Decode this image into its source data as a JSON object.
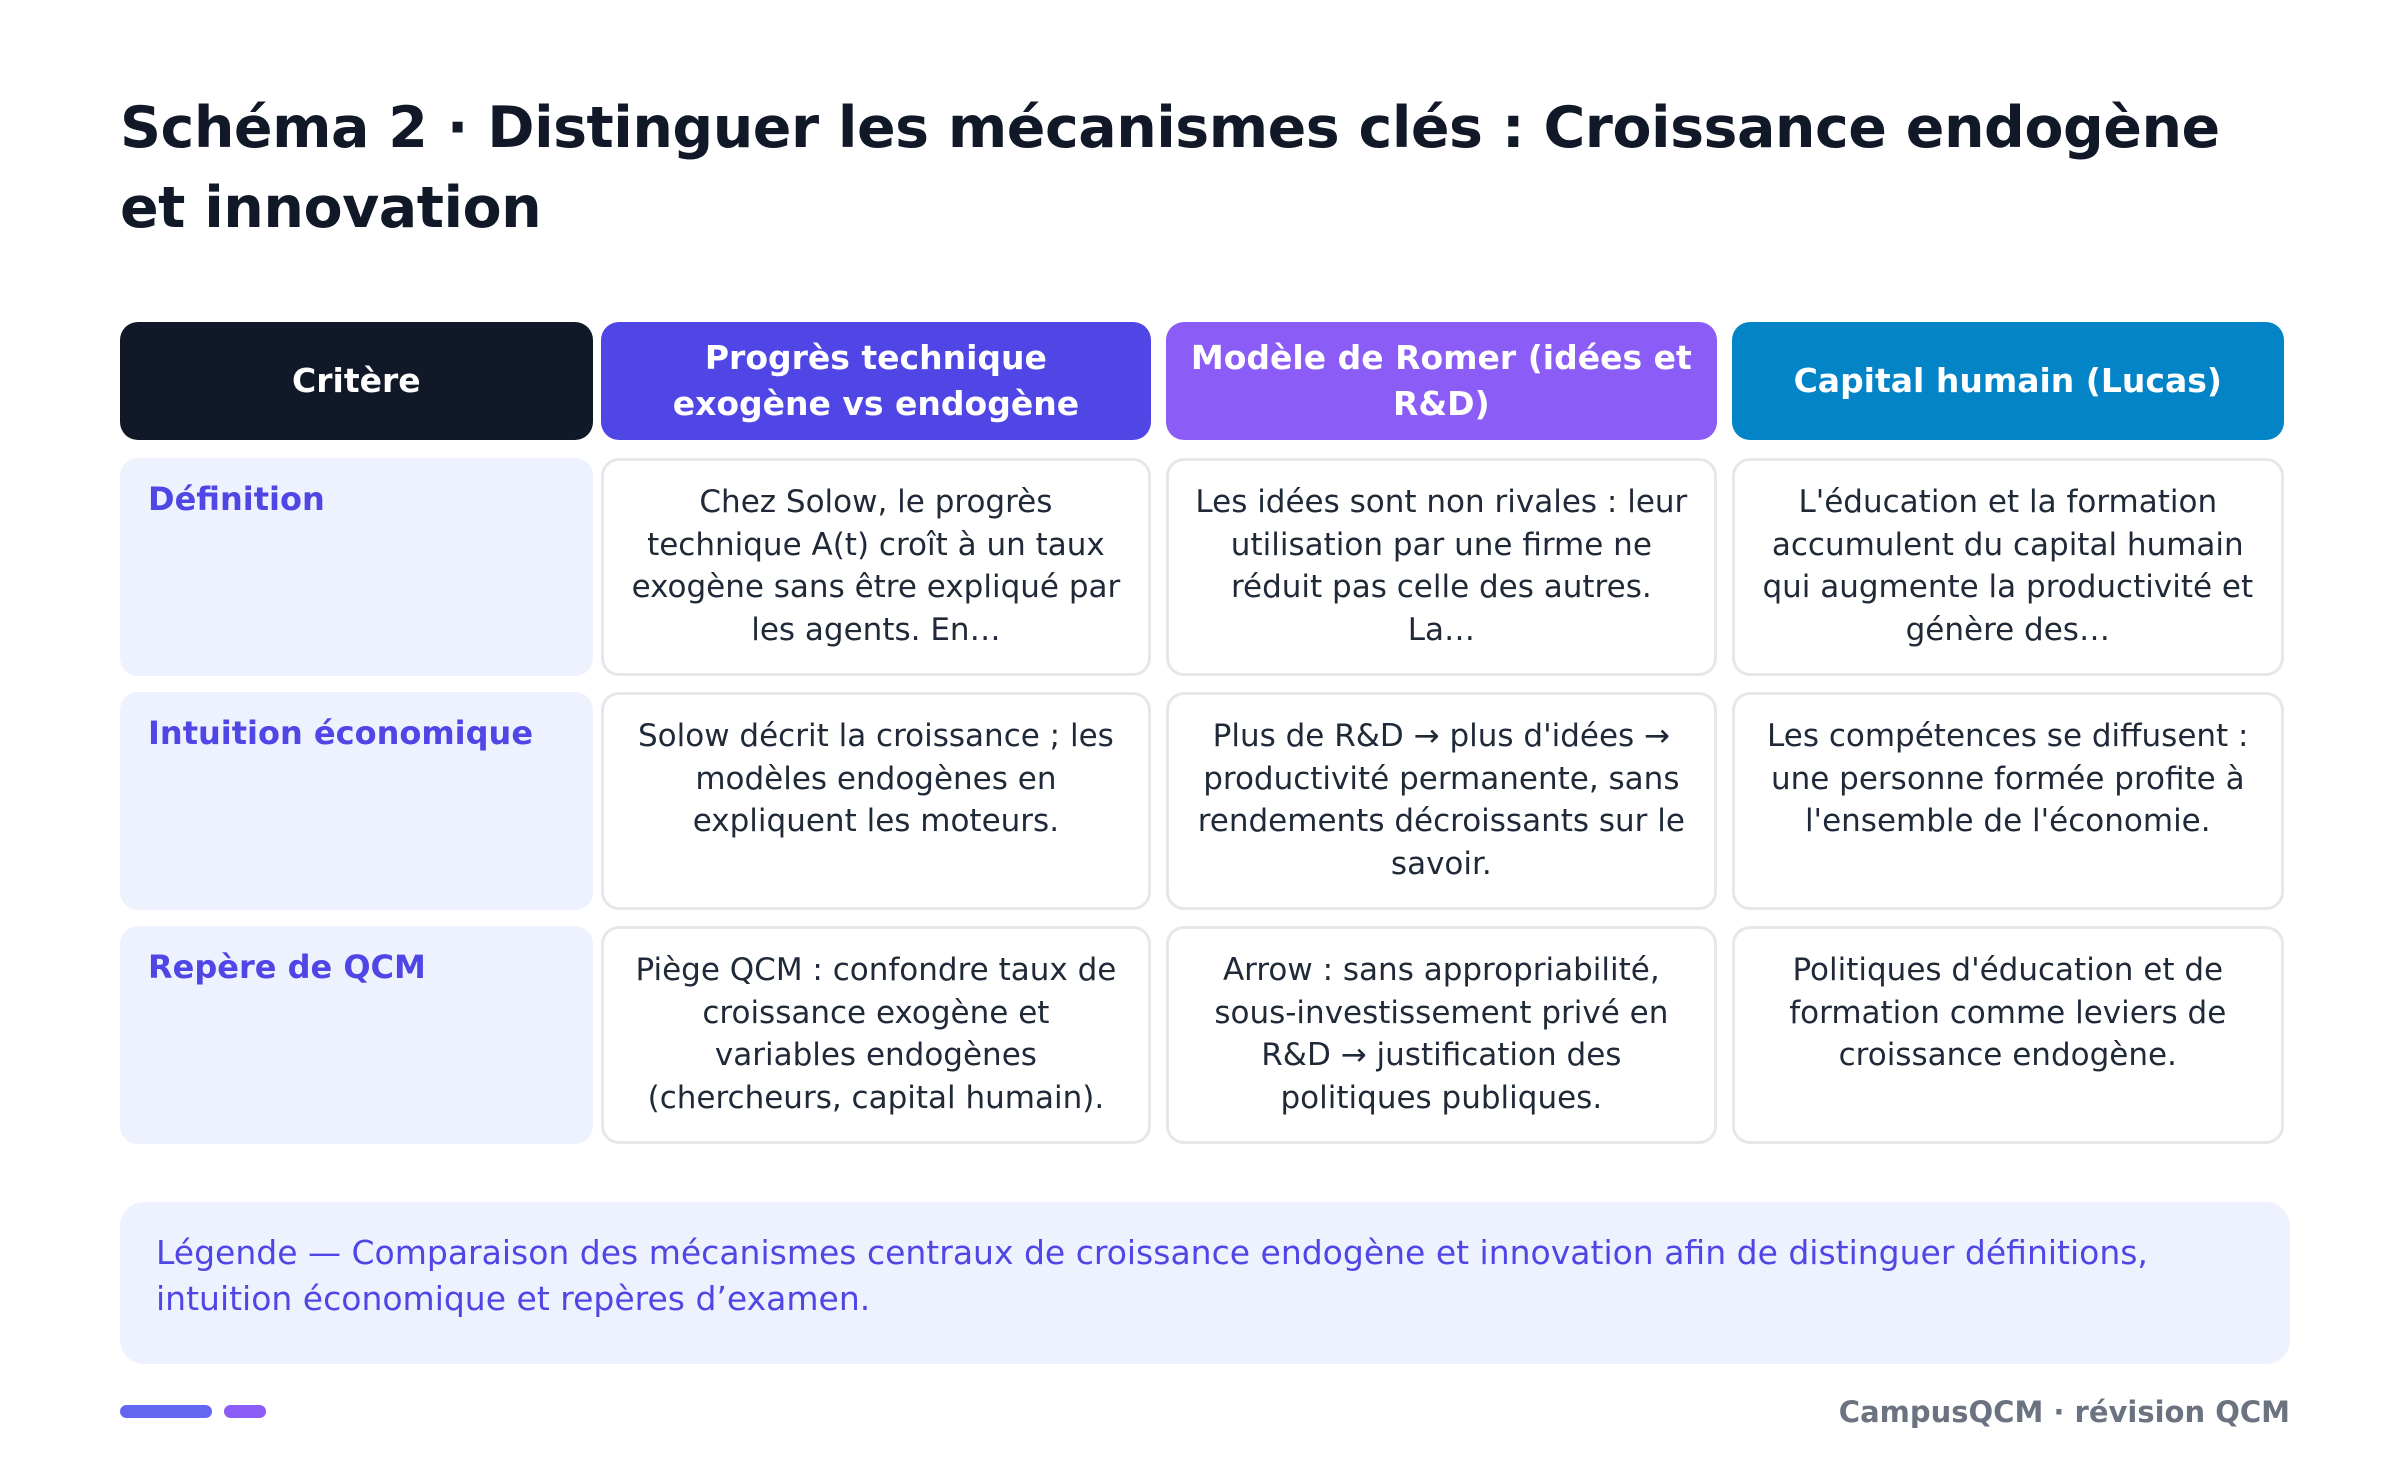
{
  "title": "Schéma 2 · Distinguer les mécanismes clés : Croissance endogène et innovation",
  "table": {
    "headers": [
      "Critère",
      "Progrès technique exogène vs endogène",
      "Modèle de Romer (idées et R&D)",
      "Capital humain (Lucas)"
    ],
    "rows": [
      {
        "criterion": "Définition",
        "cells": [
          "Chez Solow, le progrès technique A(t) croît à un taux exogène sans être expliqué par les agents. En…",
          "Les idées sont non rivales : leur utilisation par une firme ne réduit pas celle des autres. La…",
          "L'éducation et la formation accumulent du capital humain qui augmente la productivité et génère des…"
        ]
      },
      {
        "criterion": "Intuition économique",
        "cells": [
          "Solow décrit la croissance ; les modèles endogènes en expliquent les moteurs.",
          "Plus de R&D → plus d'idées → productivité permanente, sans rendements décroissants sur le savoir.",
          "Les compétences se diffusent : une personne formée profite à l'ensemble de l'économie."
        ]
      },
      {
        "criterion": "Repère de QCM",
        "cells": [
          "Piège QCM : confondre taux de croissance exogène et variables endogènes (chercheurs, capital humain).",
          "Arrow : sans appropriabilité, sous-investissement privé en R&D → justification des politiques publiques.",
          "Politiques d'éducation et de formation comme leviers de croissance endogène."
        ]
      }
    ]
  },
  "legend": "Légende — Comparaison des mécanismes centraux de croissance endogène et innovation afin de distinguer définitions, intuition économique et repères d’examen.",
  "footer": "CampusQCM · révision QCM",
  "colors": {
    "header_criterion": "#111827",
    "header_col1": "#4f46e5",
    "header_col2": "#8b5cf6",
    "header_col3": "#0284c7",
    "accent": "#4f46e5"
  }
}
